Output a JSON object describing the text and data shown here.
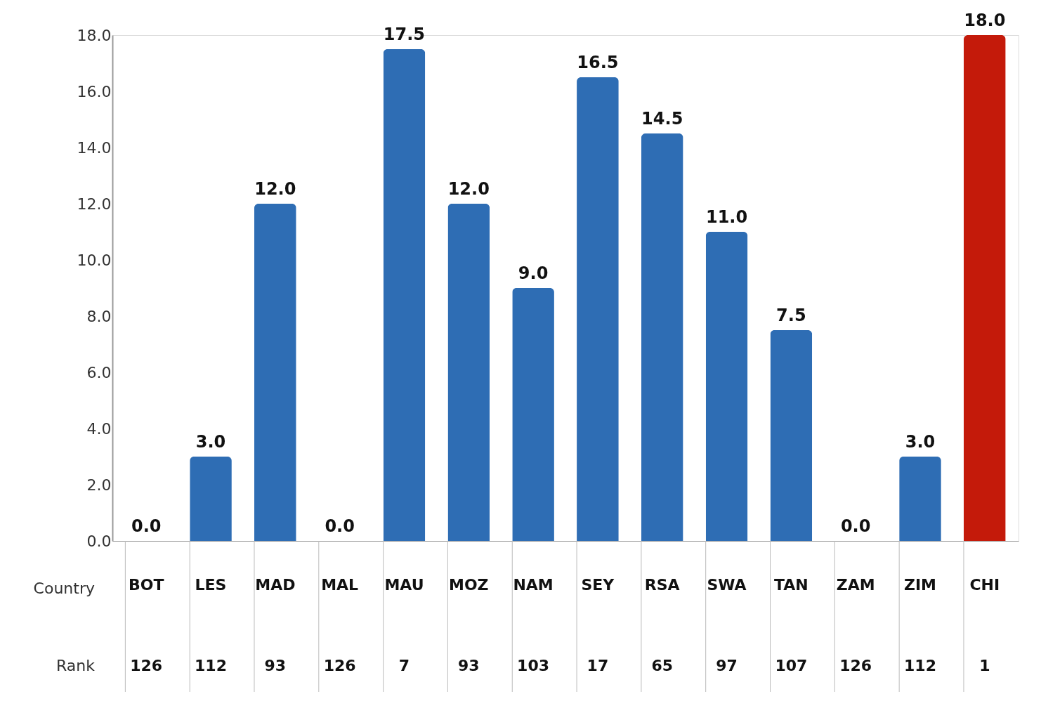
{
  "chart_data": {
    "type": "bar",
    "xlabel": "Country",
    "categories": [
      "BOT",
      "LES",
      "MAD",
      "MAL",
      "MAU",
      "MOZ",
      "NAM",
      "SEY",
      "RSA",
      "SWA",
      "TAN",
      "ZAM",
      "ZIM",
      "CHI"
    ],
    "values": [
      0.0,
      3.0,
      12.0,
      0.0,
      17.5,
      12.0,
      9.0,
      16.5,
      14.5,
      11.0,
      7.5,
      0.0,
      3.0,
      18.0
    ],
    "value_labels": [
      "0.0",
      "3.0",
      "12.0",
      "0.0",
      "17.5",
      "12.0",
      "9.0",
      "16.5",
      "14.5",
      "11.0",
      "7.5",
      "0.0",
      "3.0",
      "18.0"
    ],
    "colors": [
      "#2e6db4",
      "#2e6db4",
      "#2e6db4",
      "#2e6db4",
      "#2e6db4",
      "#2e6db4",
      "#2e6db4",
      "#2e6db4",
      "#2e6db4",
      "#2e6db4",
      "#2e6db4",
      "#2e6db4",
      "#2e6db4",
      "#c41a0a"
    ],
    "ylim": [
      0,
      18
    ],
    "yticks": [
      {
        "value": 0,
        "label": "0.0"
      },
      {
        "value": 2,
        "label": "2.0"
      },
      {
        "value": 4,
        "label": "4.0"
      },
      {
        "value": 6,
        "label": "6.0"
      },
      {
        "value": 8,
        "label": "8.0"
      },
      {
        "value": 10,
        "label": "10.0"
      },
      {
        "value": 12,
        "label": "12.0"
      },
      {
        "value": 14,
        "label": "14.0"
      },
      {
        "value": 16,
        "label": "16.0"
      },
      {
        "value": 18,
        "label": "18.0"
      }
    ],
    "grid": false,
    "annotations": [
      "Rank",
      "126",
      "112",
      "93",
      "126",
      "7",
      "93",
      "103",
      "17",
      "65",
      "97",
      "107",
      "126",
      "112",
      "1"
    ]
  }
}
